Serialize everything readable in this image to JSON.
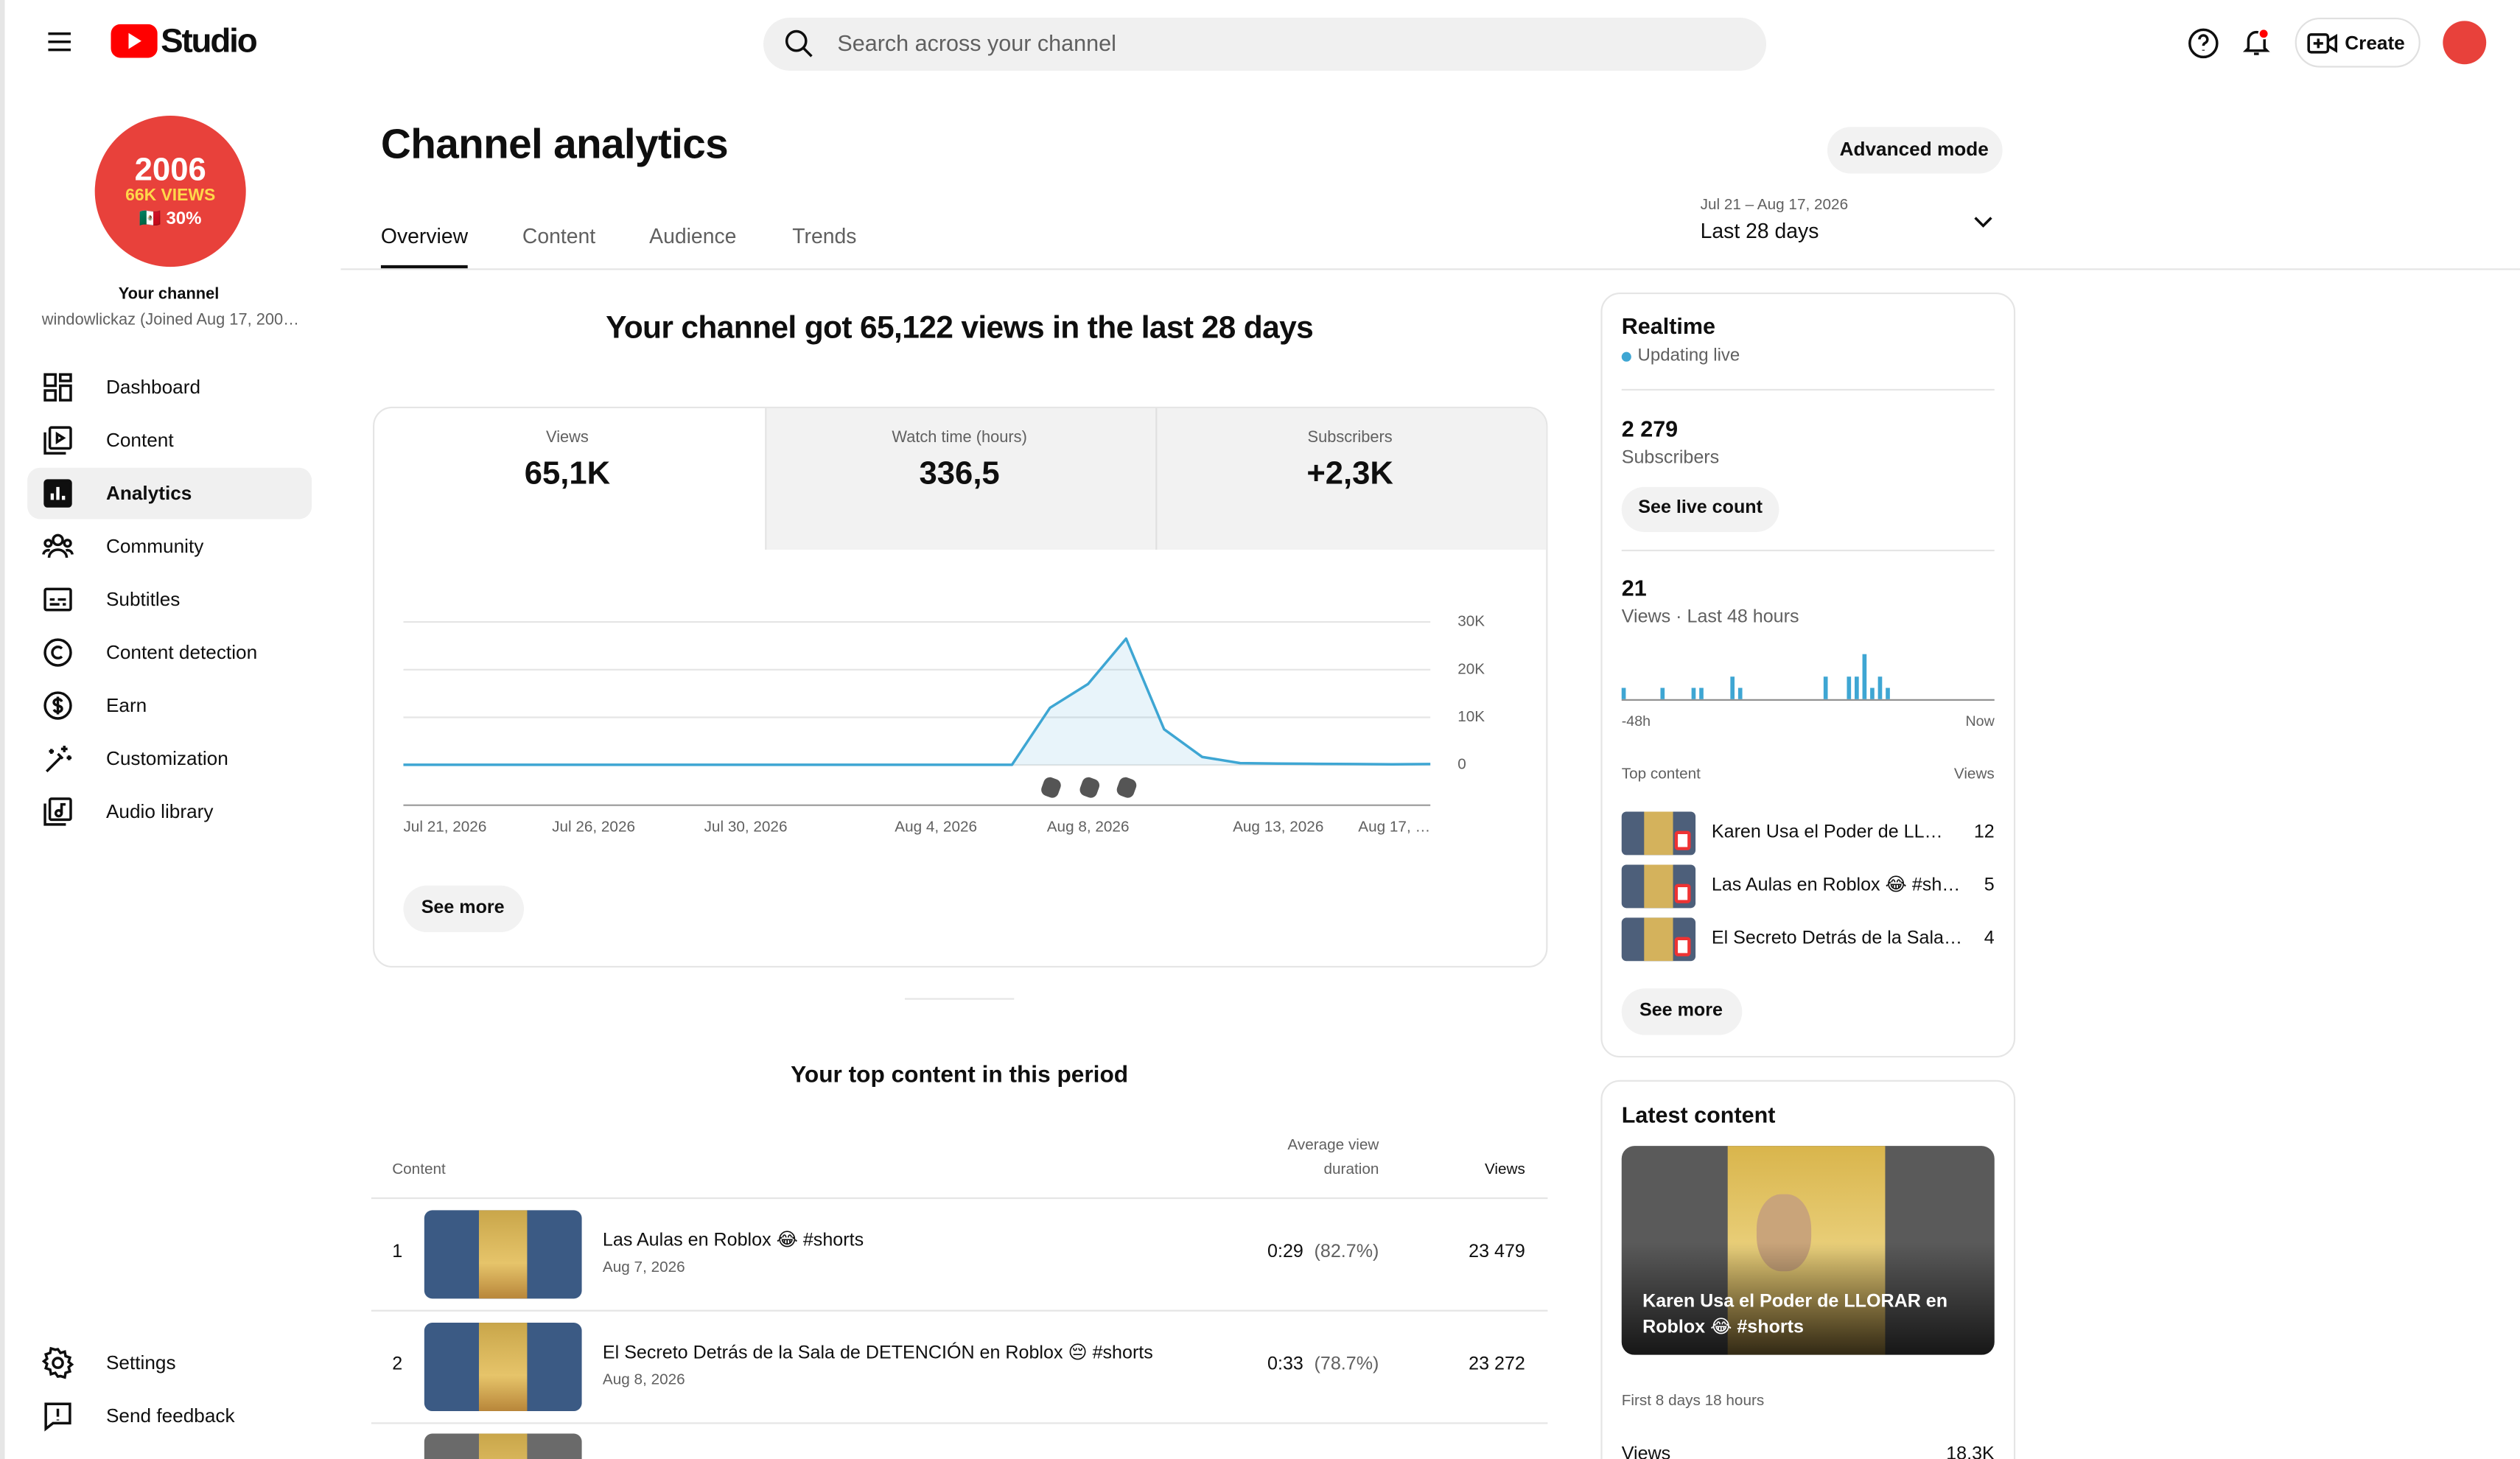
{
  "header": {
    "logo_text": "Studio",
    "search_placeholder": "Search across your channel",
    "create": "Create"
  },
  "sidebar": {
    "avatar": {
      "line1": "2006",
      "line2": "66K VIEWS",
      "line3": "🇲🇽 30%"
    },
    "channel_label": "Your channel",
    "channel_name": "windowlickaz (Joined Aug 17, 200…",
    "nav": [
      "Dashboard",
      "Content",
      "Analytics",
      "Community",
      "Subtitles",
      "Content detection",
      "Earn",
      "Customization",
      "Audio library"
    ],
    "bottom_nav": [
      "Settings",
      "Send feedback"
    ]
  },
  "page": {
    "title": "Channel analytics",
    "advanced_mode": "Advanced mode",
    "tabs": [
      "Overview",
      "Content",
      "Audience",
      "Trends"
    ],
    "date_range": "Jul 21 – Aug 17, 2026",
    "period": "Last 28 days"
  },
  "summary": {
    "headline": "Your channel got 65,122 views in the last 28 days",
    "metrics": [
      {
        "label": "Views",
        "value": "65,1K"
      },
      {
        "label": "Watch time (hours)",
        "value": "336,5"
      },
      {
        "label": "Subscribers",
        "value": "+2,3K"
      }
    ],
    "see_more": "See more"
  },
  "chart": {
    "type": "line",
    "categories": [
      "Jul 21, 2026",
      null,
      null,
      null,
      null,
      "Jul 26, 2026",
      null,
      null,
      null,
      "Jul 30, 2026",
      null,
      null,
      null,
      null,
      "Aug 4, 2026",
      null,
      null,
      null,
      "Aug 8, 2026",
      null,
      null,
      null,
      null,
      "Aug 13, 2026",
      null,
      null,
      null,
      "Aug 17, …"
    ],
    "values": [
      50,
      50,
      50,
      50,
      50,
      50,
      50,
      50,
      50,
      50,
      50,
      50,
      50,
      50,
      50,
      50,
      50,
      12000,
      17000,
      26500,
      7500,
      1700,
      400,
      300,
      250,
      200,
      150,
      200
    ],
    "ylim": [
      0,
      30000
    ],
    "yticks": [
      0,
      {
        "value": 10000,
        "label": "10K"
      },
      {
        "value": 20000,
        "label": "20K"
      },
      {
        "value": 30000,
        "label": "30K"
      }
    ],
    "color": "#3ea6d3",
    "grid": true
  },
  "top_content": {
    "title": "Your top content in this period",
    "columns": {
      "content": "Content",
      "avg_duration": [
        "Average view",
        "duration"
      ],
      "views": "Views"
    },
    "rows": [
      {
        "rank": "1",
        "title": "Las Aulas en Roblox 😂 #shorts",
        "date": "Aug 7, 2026",
        "duration": "0:29",
        "percent": "(82.7%)",
        "views": "23 479"
      },
      {
        "rank": "2",
        "title": "El Secreto Detrás de la Sala de DETENCIÓN en Roblox 😔 #shorts",
        "date": "Aug 8, 2026",
        "duration": "0:33",
        "percent": "(78.7%)",
        "views": "23 272"
      }
    ]
  },
  "realtime": {
    "title": "Realtime",
    "status": "Updating live",
    "subscribers_value": "2 279",
    "subscribers_label": "Subscribers",
    "see_live_count": "See live count",
    "views_value": "21",
    "views_label": "Views · Last 48 hours",
    "views_48h": {
      "type": "bar",
      "color": "#3ea6d3",
      "values": [
        1,
        0,
        0,
        0,
        0,
        1,
        0,
        0,
        0,
        1,
        1,
        0,
        0,
        0,
        2,
        1,
        0,
        0,
        0,
        0,
        0,
        0,
        0,
        0,
        0,
        0,
        2,
        0,
        0,
        2,
        2,
        4,
        1,
        2,
        1,
        0,
        0,
        0,
        0,
        0,
        0,
        0,
        0,
        0,
        0,
        0,
        0,
        0
      ]
    },
    "axis_start": "-48h",
    "axis_end": "Now",
    "top_content_label": "Top content",
    "views_col": "Views",
    "items": [
      {
        "title": "Karen Usa el Poder de LL…",
        "views": "12"
      },
      {
        "title": "Las Aulas en Roblox 😂 #sh…",
        "views": "5"
      },
      {
        "title": "El Secreto Detrás de la Sala…",
        "views": "4"
      }
    ],
    "see_more": "See more"
  },
  "latest": {
    "title": "Latest content",
    "video_title": [
      "Karen Usa el Poder de LLORAR en",
      "Roblox 😂 #shorts"
    ],
    "period": "First 8 days 18 hours",
    "views_label": "Views",
    "views_value": "18,3K"
  }
}
